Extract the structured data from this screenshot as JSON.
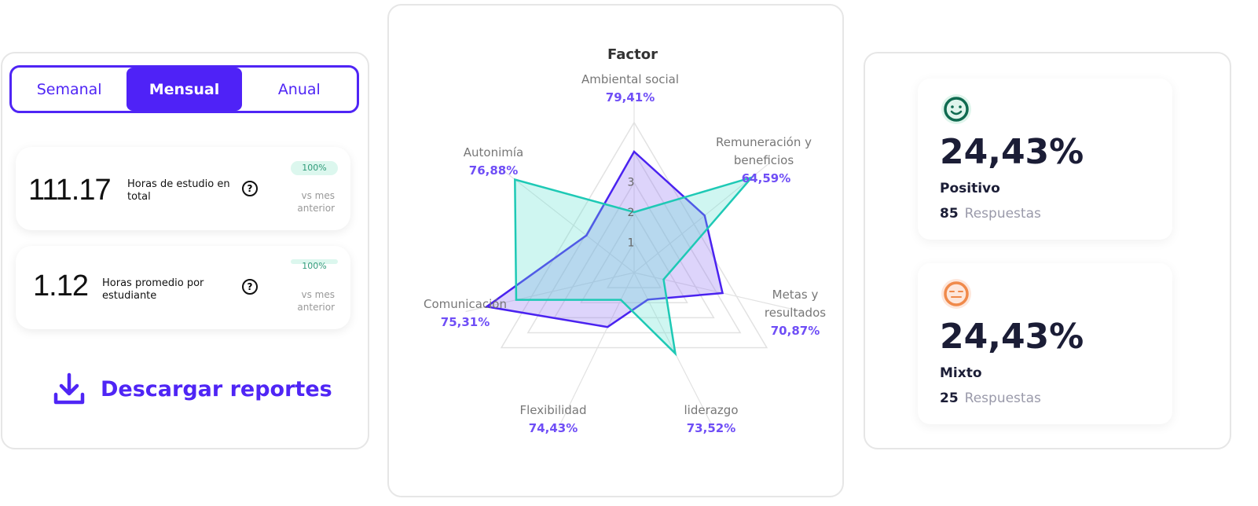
{
  "period_toggle": {
    "options": [
      "Semanal",
      "Mensual",
      "Anual"
    ],
    "selected": "Mensual"
  },
  "stats": [
    {
      "value": "111.17",
      "label": "Horas de estudio en total",
      "badge": "100%",
      "compare": "vs mes anterior"
    },
    {
      "value": "1.12",
      "label": "Horas promedio por estudiante",
      "badge": "100%",
      "compare": "vs mes anterior"
    }
  ],
  "download": {
    "label": "Descargar reportes",
    "icon": "download-icon"
  },
  "chart_data": {
    "type": "radar",
    "title": "Factor",
    "axes": [
      {
        "label": "Ambiental social",
        "percent": "79,41%"
      },
      {
        "label": "Remuneración y beneficios",
        "label_lines": [
          "Remuneración y",
          "beneficios"
        ],
        "percent": "64,59%"
      },
      {
        "label": "Metas y resultados",
        "label_lines": [
          "Metas y",
          "resultados"
        ],
        "percent": "70,87%"
      },
      {
        "label": "liderazgo",
        "percent": "73,52%"
      },
      {
        "label": "Flexibilidad",
        "percent": "74,43%"
      },
      {
        "label": "Comunicación",
        "percent": "75,31%"
      },
      {
        "label": "Autonimía",
        "percent": "76,88%"
      }
    ],
    "radial_ticks": [
      "1",
      "2",
      "3"
    ],
    "series": [
      {
        "color": "#4a22f0",
        "fill": "#8f6ff2",
        "values": [
          4,
          3,
          3,
          1,
          2,
          5,
          2
        ]
      },
      {
        "color": "#1ec9b5",
        "fill": "#5fe0cf",
        "values": [
          2,
          5,
          1,
          3,
          1,
          4,
          5
        ]
      }
    ],
    "grid": "triangular"
  },
  "sentiments": [
    {
      "icon": "smile-icon",
      "color": "#0f6b50",
      "bg": "#dff5ec",
      "percent": "24,43%",
      "label": "Positivo",
      "count": "85",
      "count_label": "Respuestas"
    },
    {
      "icon": "neutral-face-icon",
      "color": "#f08a4b",
      "bg": "#fde7dc",
      "percent": "24,43%",
      "label": "Mixto",
      "count": "25",
      "count_label": "Respuestas"
    }
  ]
}
